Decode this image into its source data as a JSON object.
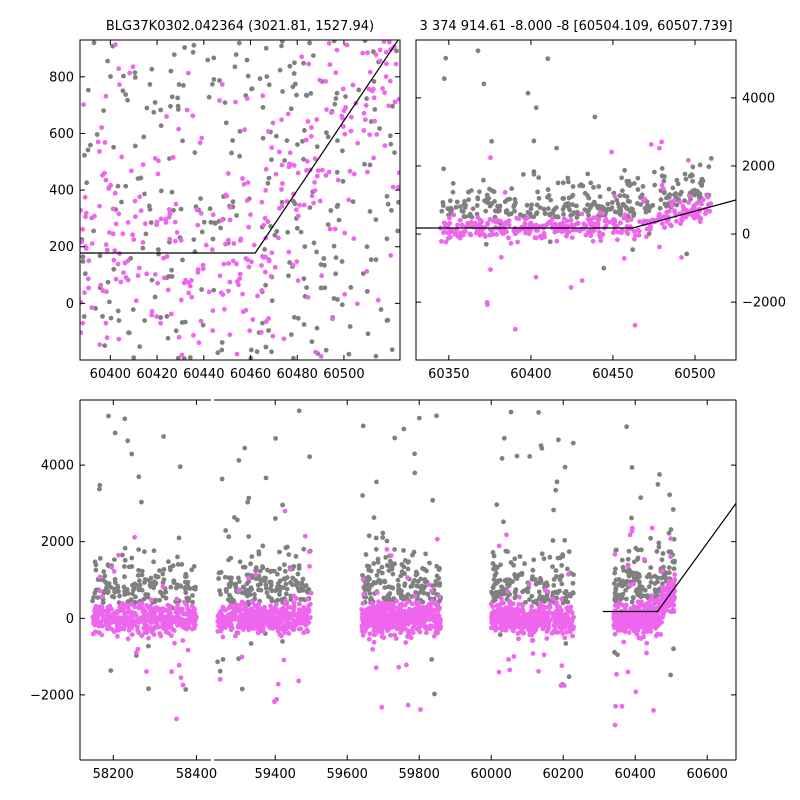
{
  "chart_data": [
    {
      "type": "scatter",
      "panel": "top-left",
      "title": "BLG37K0302.042364 (3021.81, 1527.94)",
      "xticks": [
        60400,
        60420,
        60440,
        60460,
        60480,
        60500
      ],
      "yticks": [
        0,
        200,
        400,
        600,
        800
      ],
      "xlim": [
        60387,
        60524
      ],
      "ylim": [
        -200,
        930
      ],
      "y_axis_side": "left",
      "grid": false,
      "series": [
        {
          "color": "#808080",
          "marker": "dot",
          "n_points": 300
        },
        {
          "color": "#ee66ee",
          "marker": "dot",
          "n_points": 360
        }
      ],
      "model_line": [
        [
          60387,
          178
        ],
        [
          60462,
          178
        ],
        [
          60524,
          940
        ]
      ]
    },
    {
      "type": "scatter",
      "panel": "top-right",
      "title": "3 374 914.61 -8.000 -8 [60504.109, 60507.739]",
      "xticks": [
        60350,
        60400,
        60450,
        60500
      ],
      "yticks": [
        -2000,
        0,
        2000,
        4000
      ],
      "xlim": [
        60330,
        60525
      ],
      "ylim": [
        -3700,
        5700
      ],
      "y_axis_side": "right",
      "grid": false,
      "series": [
        {
          "color": "#808080",
          "marker": "dot",
          "n_points": 320
        },
        {
          "color": "#ee66ee",
          "marker": "dot",
          "n_points": 380
        }
      ],
      "model_line": [
        [
          60330,
          178
        ],
        [
          60462,
          178
        ],
        [
          60525,
          1000
        ]
      ]
    },
    {
      "type": "scatter",
      "panel": "bottom",
      "title": "",
      "xticks_left": [
        58200,
        58400
      ],
      "xticks_right": [
        59400,
        59600,
        59800,
        60000,
        60200,
        60400,
        60600
      ],
      "yticks": [
        -2000,
        0,
        2000,
        4000
      ],
      "xlim_left": [
        58120,
        58435
      ],
      "xlim_right": [
        59230,
        60680
      ],
      "ylim": [
        -3700,
        5700
      ],
      "y_axis_side": "left",
      "broken_x_axis": true,
      "grid": false,
      "season_ranges": [
        [
          58150,
          58400
        ],
        [
          59240,
          59500
        ],
        [
          59640,
          59860
        ],
        [
          60000,
          60230
        ],
        [
          60340,
          60510
        ]
      ],
      "series": [
        {
          "color": "#808080",
          "marker": "dot",
          "n_points": 900
        },
        {
          "color": "#ee66ee",
          "marker": "dot",
          "n_points": 2200
        }
      ],
      "model_line": [
        [
          60310,
          178
        ],
        [
          60462,
          178
        ],
        [
          60680,
          3000
        ]
      ]
    }
  ]
}
